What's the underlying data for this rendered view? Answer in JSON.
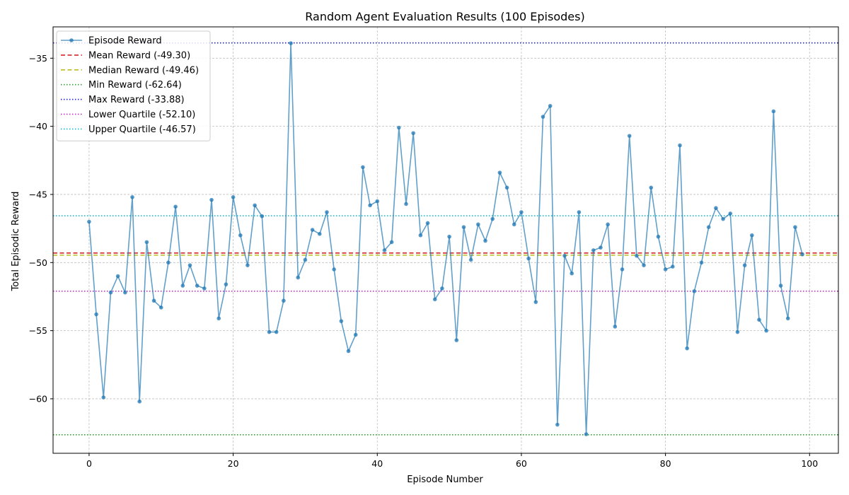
{
  "chart_data": {
    "type": "line",
    "title": "Random Agent Evaluation Results (100 Episodes)",
    "xlabel": "Episode Number",
    "ylabel": "Total Episodic Reward",
    "xlim": [
      -5,
      104
    ],
    "ylim": [
      -64,
      -32.7
    ],
    "xticks": [
      0,
      20,
      40,
      60,
      80,
      100
    ],
    "yticks": [
      -60,
      -55,
      -50,
      -45,
      -40,
      -35
    ],
    "grid": true,
    "legend_position": "upper-left",
    "series": [
      {
        "name": "Episode Reward",
        "color": "#1f77b4",
        "x": [
          0,
          1,
          2,
          3,
          4,
          5,
          6,
          7,
          8,
          9,
          10,
          11,
          12,
          13,
          14,
          15,
          16,
          17,
          18,
          19,
          20,
          21,
          22,
          23,
          24,
          25,
          26,
          27,
          28,
          29,
          30,
          31,
          32,
          33,
          34,
          35,
          36,
          37,
          38,
          39,
          40,
          41,
          42,
          43,
          44,
          45,
          46,
          47,
          48,
          49,
          50,
          51,
          52,
          53,
          54,
          55,
          56,
          57,
          58,
          59,
          60,
          61,
          62,
          63,
          64,
          65,
          66,
          67,
          68,
          69,
          70,
          71,
          72,
          73,
          74,
          75,
          76,
          77,
          78,
          79,
          80,
          81,
          82,
          83,
          84,
          85,
          86,
          87,
          88,
          89,
          90,
          91,
          92,
          93,
          94,
          95,
          96,
          97,
          98,
          99
        ],
        "y": [
          -47.0,
          -53.8,
          -59.9,
          -52.2,
          -51.0,
          -52.2,
          -45.2,
          -60.2,
          -48.5,
          -52.8,
          -53.3,
          -50.0,
          -45.9,
          -51.7,
          -50.2,
          -51.7,
          -51.9,
          -45.4,
          -54.1,
          -51.6,
          -45.2,
          -48.0,
          -50.2,
          -45.8,
          -46.6,
          -55.1,
          -55.1,
          -52.8,
          -33.9,
          -51.1,
          -49.8,
          -47.6,
          -47.9,
          -46.3,
          -50.5,
          -54.3,
          -56.5,
          -55.3,
          -43.0,
          -45.8,
          -45.5,
          -49.1,
          -48.5,
          -40.1,
          -45.7,
          -40.5,
          -48.0,
          -47.1,
          -52.7,
          -51.9,
          -48.1,
          -55.7,
          -47.4,
          -49.8,
          -47.2,
          -48.4,
          -46.8,
          -43.4,
          -44.5,
          -47.2,
          -46.3,
          -49.7,
          -52.9,
          -39.3,
          -38.5,
          -61.9,
          -49.5,
          -50.8,
          -46.3,
          -62.6,
          -49.1,
          -48.9,
          -47.2,
          -54.7,
          -50.5,
          -40.7,
          -49.5,
          -50.2,
          -44.5,
          -48.1,
          -50.5,
          -50.3,
          -41.4,
          -56.3,
          -52.1,
          -50.0,
          -47.4,
          -46.0,
          -46.8,
          -46.4,
          -55.1,
          -50.2,
          -48.0,
          -54.2,
          -55.0,
          -38.9,
          -51.7,
          -54.1,
          -47.4,
          -49.4
        ]
      }
    ],
    "reference_lines": [
      {
        "name": "Mean Reward (-49.30)",
        "value": -49.3,
        "color": "#d62728",
        "style": "dashed"
      },
      {
        "name": "Median Reward (-49.46)",
        "value": -49.46,
        "color": "#bcbd22",
        "style": "dashed"
      },
      {
        "name": "Min Reward (-62.64)",
        "value": -62.64,
        "color": "#2ca02c",
        "style": "dotted"
      },
      {
        "name": "Max Reward (-33.88)",
        "value": -33.88,
        "color": "#1f1fd6",
        "style": "dotted"
      },
      {
        "name": "Lower Quartile (-52.10)",
        "value": -52.1,
        "color": "#c020c0",
        "style": "dotted"
      },
      {
        "name": "Upper Quartile (-46.57)",
        "value": -46.57,
        "color": "#17becf",
        "style": "dotted"
      }
    ]
  }
}
